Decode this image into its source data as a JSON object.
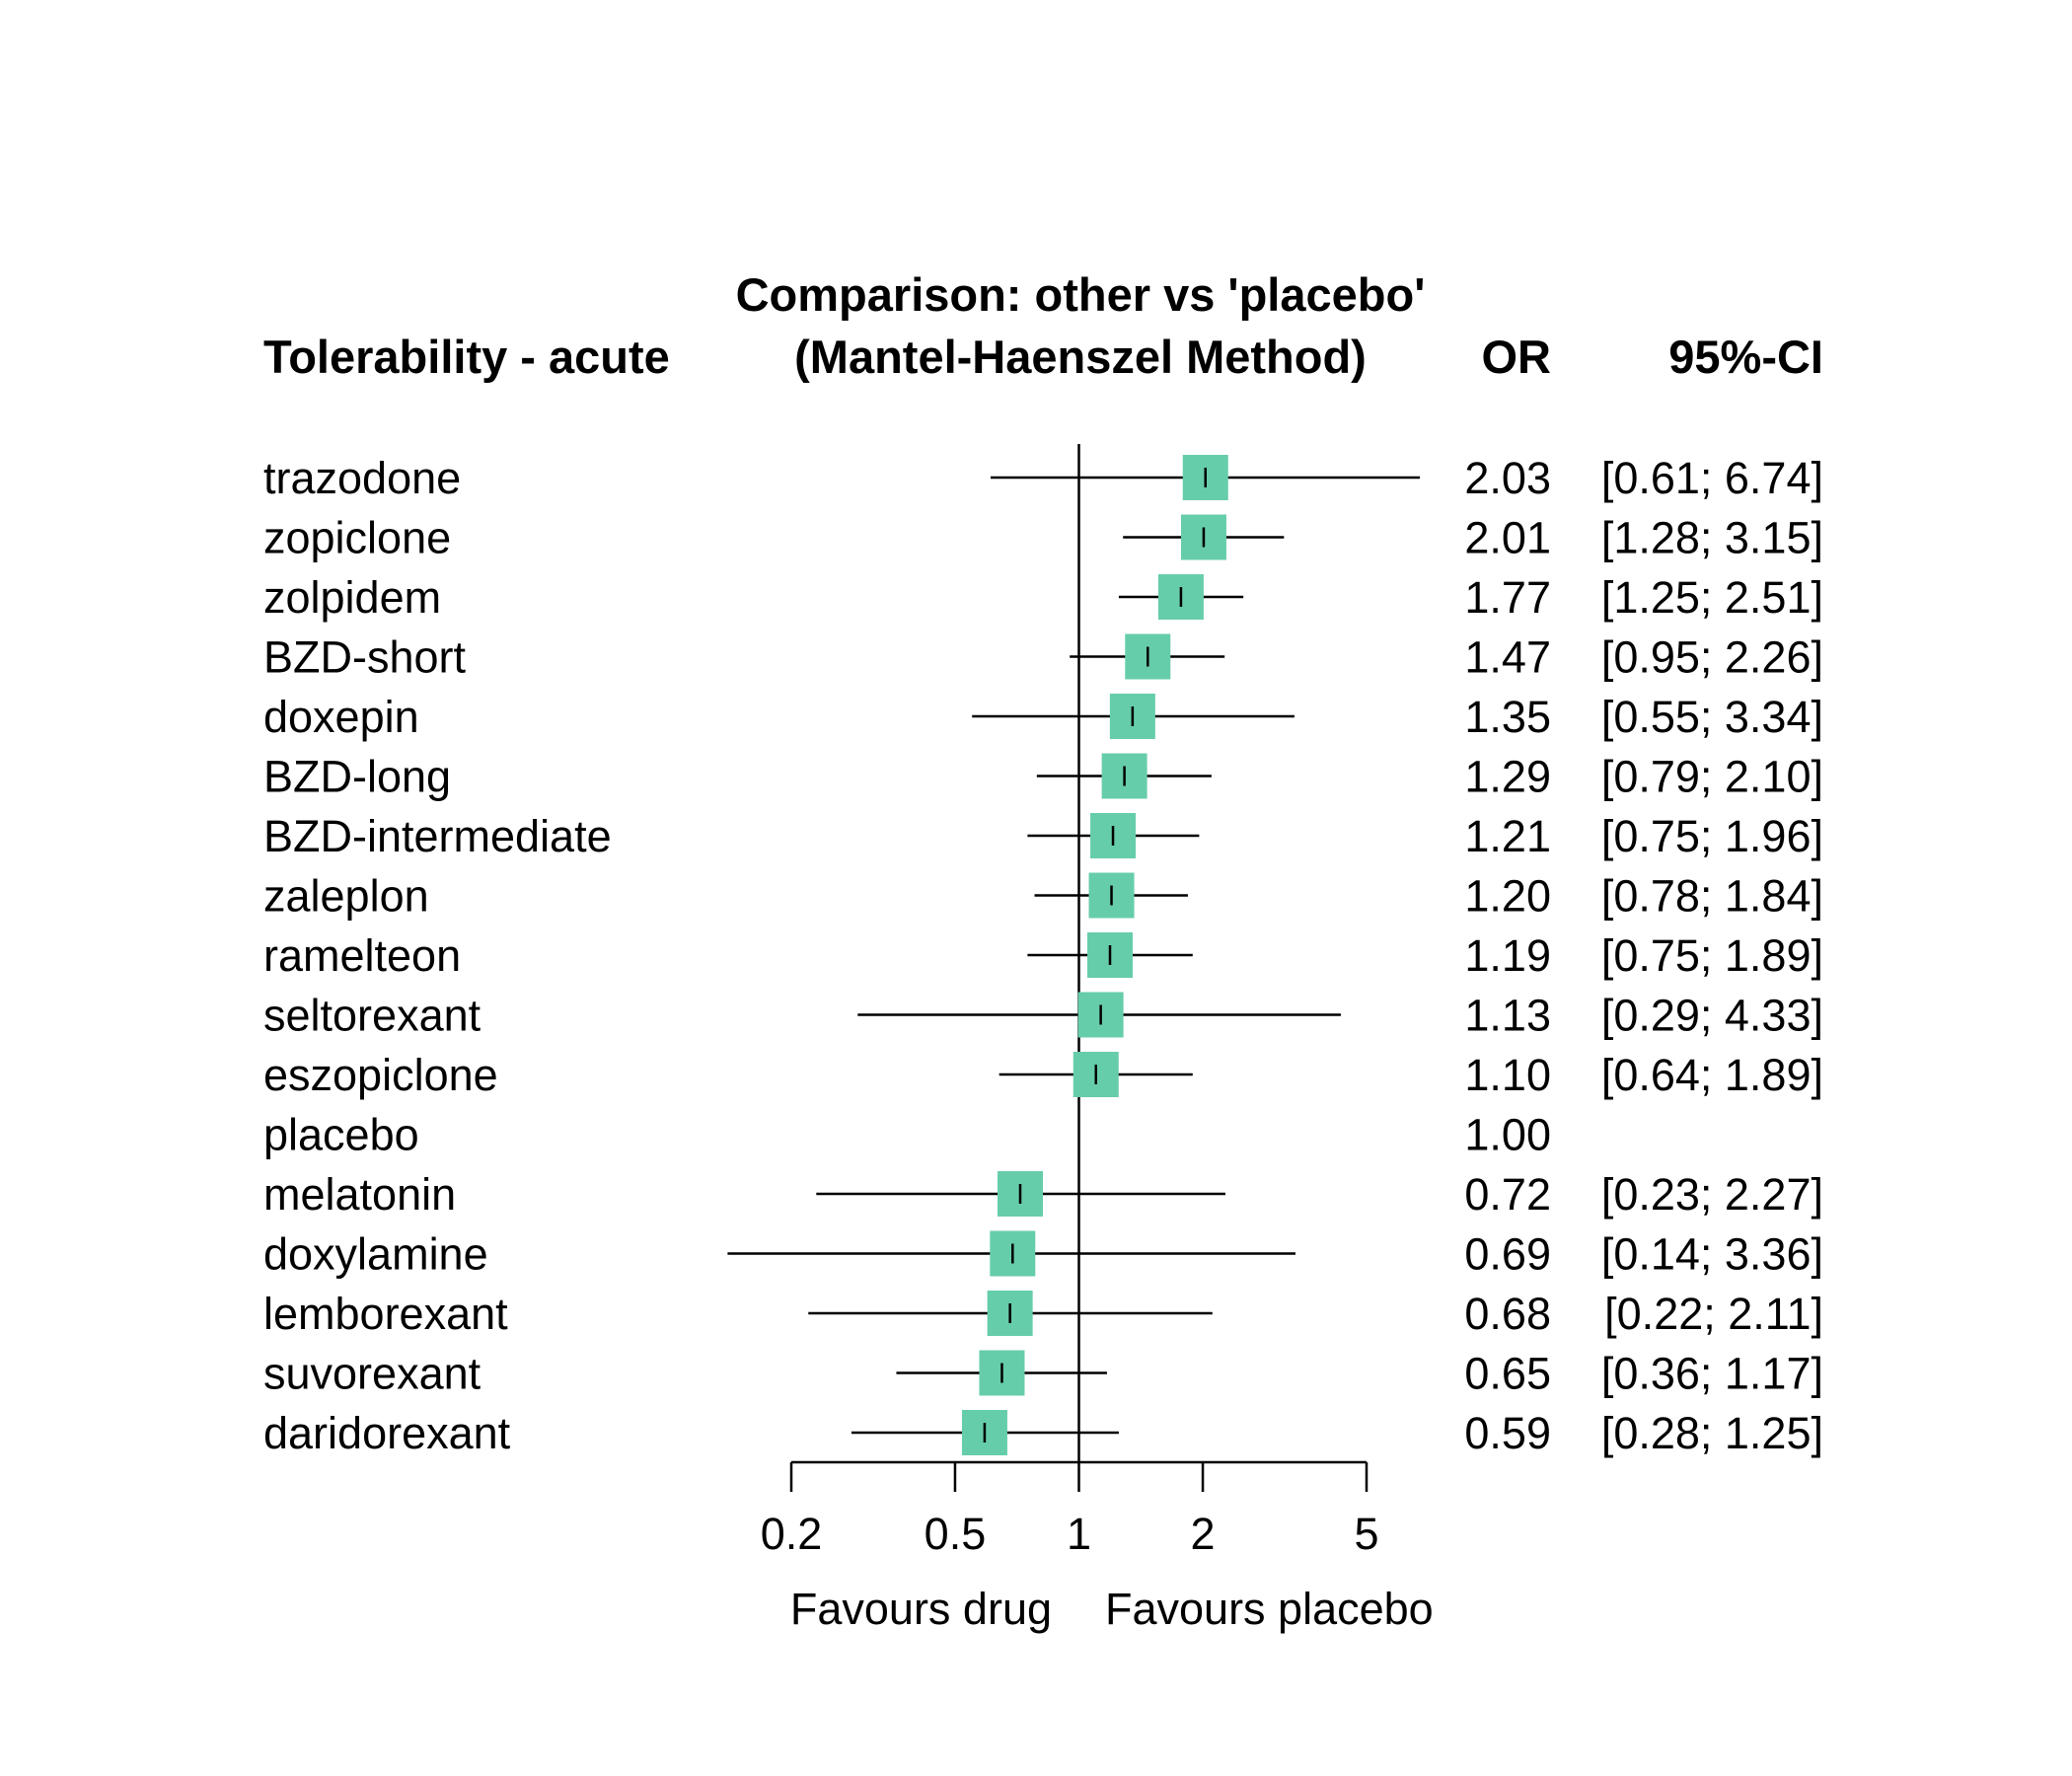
{
  "chart_data": {
    "type": "forest",
    "title_line1": "Comparison: other vs 'placebo'",
    "title_line2": "(Mantel-Haenszel Method)",
    "outcome_label": "Tolerability - acute",
    "col_or_header": "OR",
    "col_ci_header": "95%-CI",
    "x_scale": "log",
    "xlim": [
      0.2,
      5
    ],
    "reference_value": 1,
    "ticks": [
      0.2,
      0.5,
      1,
      2,
      5
    ],
    "tick_labels": [
      "0.2",
      "0.5",
      "1",
      "2",
      "5"
    ],
    "favours_left": "Favours drug",
    "favours_right": "Favours placebo",
    "box_color": "#66CDAA",
    "rows": [
      {
        "name": "trazodone",
        "or": 2.03,
        "lo": 0.61,
        "hi": 6.74,
        "or_text": "2.03",
        "ci_text": "[0.61; 6.74]"
      },
      {
        "name": "zopiclone",
        "or": 2.01,
        "lo": 1.28,
        "hi": 3.15,
        "or_text": "2.01",
        "ci_text": "[1.28; 3.15]"
      },
      {
        "name": "zolpidem",
        "or": 1.77,
        "lo": 1.25,
        "hi": 2.51,
        "or_text": "1.77",
        "ci_text": "[1.25; 2.51]"
      },
      {
        "name": "BZD-short",
        "or": 1.47,
        "lo": 0.95,
        "hi": 2.26,
        "or_text": "1.47",
        "ci_text": "[0.95; 2.26]"
      },
      {
        "name": "doxepin",
        "or": 1.35,
        "lo": 0.55,
        "hi": 3.34,
        "or_text": "1.35",
        "ci_text": "[0.55; 3.34]"
      },
      {
        "name": "BZD-long",
        "or": 1.29,
        "lo": 0.79,
        "hi": 2.1,
        "or_text": "1.29",
        "ci_text": "[0.79; 2.10]"
      },
      {
        "name": "BZD-intermediate",
        "or": 1.21,
        "lo": 0.75,
        "hi": 1.96,
        "or_text": "1.21",
        "ci_text": "[0.75; 1.96]"
      },
      {
        "name": "zaleplon",
        "or": 1.2,
        "lo": 0.78,
        "hi": 1.84,
        "or_text": "1.20",
        "ci_text": "[0.78; 1.84]"
      },
      {
        "name": "ramelteon",
        "or": 1.19,
        "lo": 0.75,
        "hi": 1.89,
        "or_text": "1.19",
        "ci_text": "[0.75; 1.89]"
      },
      {
        "name": "seltorexant",
        "or": 1.13,
        "lo": 0.29,
        "hi": 4.33,
        "or_text": "1.13",
        "ci_text": "[0.29; 4.33]"
      },
      {
        "name": "eszopiclone",
        "or": 1.1,
        "lo": 0.64,
        "hi": 1.89,
        "or_text": "1.10",
        "ci_text": "[0.64; 1.89]"
      },
      {
        "name": "placebo",
        "or": 1.0,
        "lo": null,
        "hi": null,
        "or_text": "1.00",
        "ci_text": ""
      },
      {
        "name": "melatonin",
        "or": 0.72,
        "lo": 0.23,
        "hi": 2.27,
        "or_text": "0.72",
        "ci_text": "[0.23; 2.27]"
      },
      {
        "name": "doxylamine",
        "or": 0.69,
        "lo": 0.14,
        "hi": 3.36,
        "or_text": "0.69",
        "ci_text": "[0.14; 3.36]"
      },
      {
        "name": "lemborexant",
        "or": 0.68,
        "lo": 0.22,
        "hi": 2.11,
        "or_text": "0.68",
        "ci_text": "[0.22; 2.11]"
      },
      {
        "name": "suvorexant",
        "or": 0.65,
        "lo": 0.36,
        "hi": 1.17,
        "or_text": "0.65",
        "ci_text": "[0.36; 1.17]"
      },
      {
        "name": "daridorexant",
        "or": 0.59,
        "lo": 0.28,
        "hi": 1.25,
        "or_text": "0.59",
        "ci_text": "[0.28; 1.25]"
      }
    ]
  }
}
